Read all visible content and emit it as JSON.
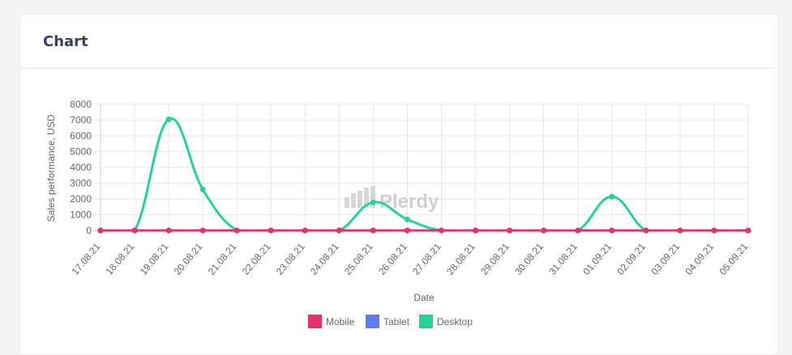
{
  "card": {
    "title": "Chart"
  },
  "watermark": "Plerdy",
  "chart_data": {
    "type": "line",
    "xlabel": "Date",
    "ylabel": "Sales performance, USD",
    "ylim": [
      0,
      8000
    ],
    "ytick_step": 1000,
    "grid": true,
    "legend_position": "bottom",
    "categories": [
      "17.08.21",
      "18.08.21",
      "19.08.21",
      "20.08.21",
      "21.08.21",
      "22.08.21",
      "23.08.21",
      "24.08.21",
      "25.08.21",
      "26.08.21",
      "27.08.21",
      "28.08.21",
      "29.08.21",
      "30.08.21",
      "31.08.21",
      "01.09.21",
      "02.09.21",
      "03.09.21",
      "04.09.21",
      "05.09.21"
    ],
    "series": [
      {
        "name": "Mobile",
        "color": "#e6306f",
        "values": [
          0,
          0,
          0,
          0,
          0,
          0,
          0,
          0,
          0,
          0,
          0,
          0,
          0,
          0,
          0,
          0,
          0,
          0,
          0,
          0
        ]
      },
      {
        "name": "Tablet",
        "color": "#5b7cf2",
        "values": [
          0,
          0,
          0,
          0,
          0,
          0,
          0,
          0,
          0,
          0,
          0,
          0,
          0,
          0,
          0,
          0,
          0,
          0,
          0,
          0
        ]
      },
      {
        "name": "Desktop",
        "color": "#25d39a",
        "values": [
          0,
          0,
          7050,
          2600,
          0,
          0,
          0,
          0,
          1780,
          700,
          0,
          0,
          0,
          0,
          0,
          2150,
          0,
          0,
          0,
          0
        ]
      }
    ]
  }
}
